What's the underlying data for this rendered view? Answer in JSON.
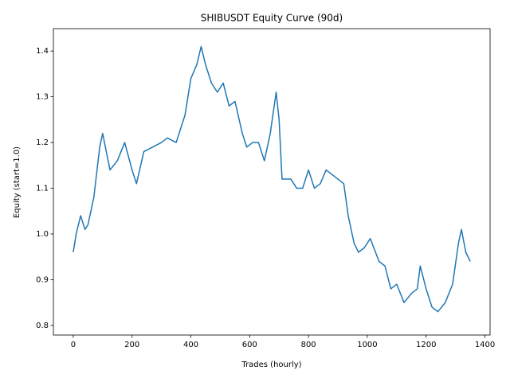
{
  "chart_data": {
    "type": "line",
    "title": "SHIBUSDT Equity Curve (90d)",
    "x_label": "Trades (hourly)",
    "y_label": "Equity (start=1.0)",
    "x": [
      0,
      10,
      25,
      40,
      50,
      70,
      90,
      100,
      125,
      150,
      175,
      200,
      215,
      240,
      270,
      300,
      320,
      350,
      380,
      400,
      420,
      435,
      450,
      470,
      490,
      510,
      530,
      550,
      575,
      590,
      610,
      630,
      650,
      670,
      690,
      700,
      710,
      740,
      760,
      780,
      800,
      820,
      840,
      860,
      880,
      900,
      920,
      935,
      955,
      970,
      990,
      1010,
      1040,
      1060,
      1080,
      1100,
      1125,
      1150,
      1170,
      1180,
      1200,
      1220,
      1240,
      1265,
      1290,
      1310,
      1320,
      1335,
      1350
    ],
    "series": [
      {
        "name": "Equity",
        "color": "#1f77b4",
        "values": [
          0.96,
          1.0,
          1.04,
          1.01,
          1.02,
          1.08,
          1.19,
          1.22,
          1.14,
          1.16,
          1.2,
          1.14,
          1.11,
          1.18,
          1.19,
          1.2,
          1.21,
          1.2,
          1.26,
          1.34,
          1.37,
          1.41,
          1.37,
          1.33,
          1.31,
          1.33,
          1.28,
          1.29,
          1.22,
          1.19,
          1.2,
          1.2,
          1.16,
          1.22,
          1.31,
          1.25,
          1.12,
          1.12,
          1.1,
          1.1,
          1.14,
          1.1,
          1.11,
          1.14,
          1.13,
          1.12,
          1.11,
          1.04,
          0.98,
          0.96,
          0.97,
          0.99,
          0.94,
          0.93,
          0.88,
          0.89,
          0.85,
          0.87,
          0.88,
          0.93,
          0.88,
          0.84,
          0.83,
          0.85,
          0.89,
          0.98,
          1.01,
          0.96,
          0.94
        ]
      }
    ],
    "xlim": [
      -67.5,
      1417.5
    ],
    "ylim": [
      0.779,
      1.449
    ],
    "xticks": [
      0,
      200,
      400,
      600,
      800,
      1000,
      1200,
      1400
    ],
    "yticks": [
      0.8,
      0.9,
      {
        "value": 1.0,
        "label": "1.0"
      },
      1.1,
      1.2,
      1.3,
      1.4
    ],
    "grid": false
  }
}
